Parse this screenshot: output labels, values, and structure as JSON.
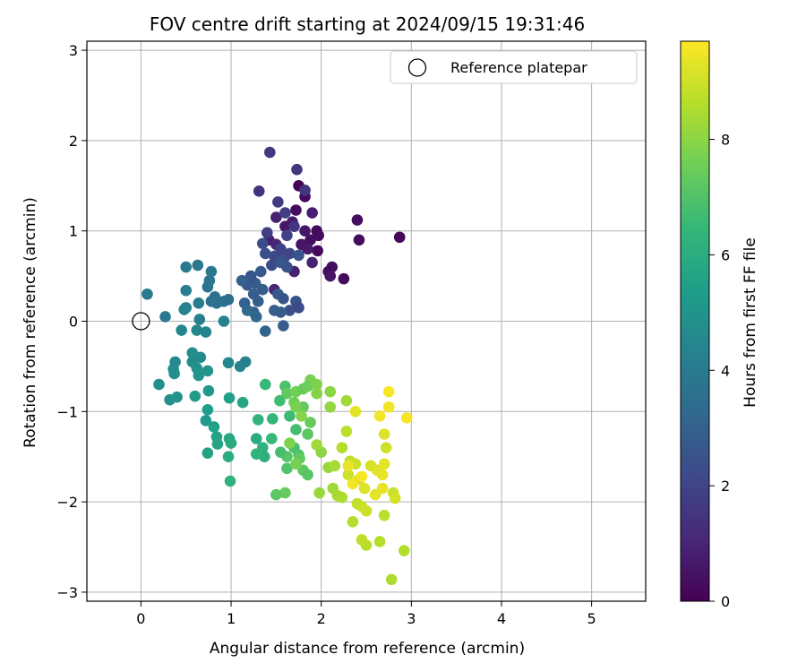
{
  "chart_data": {
    "type": "scatter",
    "title": "FOV centre drift starting at 2024/09/15 19:31:46",
    "xlabel": "Angular distance from reference (arcmin)",
    "ylabel": "Rotation from reference (arcmin)",
    "xlim": [
      -0.6,
      5.6
    ],
    "ylim": [
      -3.1,
      3.1
    ],
    "xticks": [
      0,
      1,
      2,
      3,
      4,
      5
    ],
    "yticks": [
      -3,
      -2,
      -1,
      0,
      1,
      2,
      3
    ],
    "grid": true,
    "legend": {
      "position": "top-right",
      "entries": [
        "Reference platepar"
      ]
    },
    "reference_point": {
      "x": 0,
      "y": 0
    },
    "colorbar": {
      "label": "Hours from first FF file",
      "min": 0,
      "max": 9.7,
      "ticks": [
        0,
        2,
        4,
        6,
        8
      ],
      "colormap": "viridis"
    },
    "points": [
      [
        1.75,
        1.5,
        0.1
      ],
      [
        1.82,
        1.38,
        0.2
      ],
      [
        1.72,
        1.23,
        0.3
      ],
      [
        1.95,
        1.0,
        0.2
      ],
      [
        1.97,
        0.95,
        0.3
      ],
      [
        2.4,
        1.12,
        0.4
      ],
      [
        2.42,
        0.9,
        0.3
      ],
      [
        2.87,
        0.93,
        0.2
      ],
      [
        1.88,
        0.9,
        0.4
      ],
      [
        1.78,
        0.85,
        0.5
      ],
      [
        1.96,
        0.78,
        0.2
      ],
      [
        2.12,
        0.6,
        0.4
      ],
      [
        2.08,
        0.55,
        0.3
      ],
      [
        2.25,
        0.47,
        0.3
      ],
      [
        2.1,
        0.5,
        0.5
      ],
      [
        1.6,
        1.05,
        0.6
      ],
      [
        1.68,
        1.1,
        0.7
      ],
      [
        1.9,
        1.2,
        0.8
      ],
      [
        1.82,
        1.0,
        0.6
      ],
      [
        1.5,
        1.15,
        0.9
      ],
      [
        1.42,
        0.9,
        0.8
      ],
      [
        1.9,
        0.65,
        0.9
      ],
      [
        1.85,
        0.8,
        0.7
      ],
      [
        1.7,
        0.55,
        0.9
      ],
      [
        1.48,
        0.35,
        1.0
      ],
      [
        1.5,
        0.85,
        1.0
      ],
      [
        1.6,
        0.72,
        1.1
      ],
      [
        1.43,
        1.87,
        1.6
      ],
      [
        1.73,
        1.68,
        1.6
      ],
      [
        1.82,
        1.45,
        1.5
      ],
      [
        1.31,
        1.44,
        1.4
      ],
      [
        1.52,
        1.32,
        1.7
      ],
      [
        1.6,
        1.2,
        1.8
      ],
      [
        1.7,
        1.05,
        1.5
      ],
      [
        1.62,
        0.95,
        1.9
      ],
      [
        1.55,
        0.8,
        2.0
      ],
      [
        1.65,
        0.75,
        2.1
      ],
      [
        1.48,
        0.72,
        2.2
      ],
      [
        1.58,
        0.68,
        2.3
      ],
      [
        1.45,
        0.62,
        2.2
      ],
      [
        1.38,
        0.75,
        2.4
      ],
      [
        1.35,
        0.86,
        2.3
      ],
      [
        1.4,
        0.98,
        1.8
      ],
      [
        1.75,
        0.73,
        2.5
      ],
      [
        1.55,
        0.65,
        2.6
      ],
      [
        1.62,
        0.6,
        2.5
      ],
      [
        1.33,
        0.55,
        2.7
      ],
      [
        1.27,
        0.42,
        2.8
      ],
      [
        1.22,
        0.5,
        2.6
      ],
      [
        1.18,
        0.4,
        2.7
      ],
      [
        1.35,
        0.35,
        2.8
      ],
      [
        1.3,
        0.22,
        2.9
      ],
      [
        1.25,
        0.3,
        2.9
      ],
      [
        1.15,
        0.2,
        3.0
      ],
      [
        1.12,
        0.45,
        3.0
      ],
      [
        1.52,
        0.3,
        2.7
      ],
      [
        1.58,
        0.25,
        2.6
      ],
      [
        1.72,
        0.22,
        2.5
      ],
      [
        1.65,
        0.12,
        2.4
      ],
      [
        1.55,
        0.1,
        2.8
      ],
      [
        1.48,
        0.12,
        2.9
      ],
      [
        1.58,
        -0.05,
        2.9
      ],
      [
        1.38,
        -0.11,
        3.1
      ],
      [
        1.75,
        0.15,
        2.2
      ],
      [
        1.25,
        0.1,
        3.0
      ],
      [
        1.28,
        0.05,
        3.2
      ],
      [
        1.18,
        0.12,
        3.3
      ],
      [
        0.97,
        0.24,
        3.4
      ],
      [
        0.92,
        0.22,
        3.5
      ],
      [
        0.82,
        0.27,
        3.6
      ],
      [
        0.84,
        0.2,
        3.7
      ],
      [
        0.78,
        0.22,
        3.6
      ],
      [
        0.76,
        0.45,
        3.8
      ],
      [
        0.74,
        0.38,
        3.7
      ],
      [
        0.78,
        0.55,
        3.9
      ],
      [
        0.63,
        0.62,
        3.9
      ],
      [
        0.5,
        0.6,
        4.0
      ],
      [
        0.5,
        0.34,
        4.1
      ],
      [
        0.64,
        0.2,
        4.1
      ],
      [
        0.5,
        0.15,
        4.2
      ],
      [
        0.48,
        0.13,
        4.3
      ],
      [
        0.65,
        0.02,
        4.2
      ],
      [
        0.72,
        -0.12,
        4.4
      ],
      [
        0.62,
        -0.1,
        4.5
      ],
      [
        0.45,
        -0.1,
        4.5
      ],
      [
        0.27,
        0.05,
        4.0
      ],
      [
        0.07,
        0.3,
        4.0
      ],
      [
        0.92,
        0.0,
        4.3
      ],
      [
        0.97,
        -0.46,
        4.5
      ],
      [
        1.1,
        -0.5,
        4.4
      ],
      [
        1.16,
        -0.45,
        4.3
      ],
      [
        0.66,
        -0.4,
        4.6
      ],
      [
        0.57,
        -0.45,
        4.7
      ],
      [
        0.38,
        -0.45,
        4.6
      ],
      [
        0.36,
        -0.53,
        4.7
      ],
      [
        0.37,
        -0.58,
        4.8
      ],
      [
        0.57,
        -0.35,
        4.8
      ],
      [
        0.62,
        -0.52,
        4.9
      ],
      [
        0.64,
        -0.6,
        5.0
      ],
      [
        0.74,
        -0.55,
        5.0
      ],
      [
        0.2,
        -0.7,
        4.8
      ],
      [
        0.32,
        -0.87,
        4.9
      ],
      [
        0.4,
        -0.84,
        5.0
      ],
      [
        0.75,
        -0.77,
        5.2
      ],
      [
        0.6,
        -0.83,
        5.3
      ],
      [
        0.74,
        -0.98,
        5.4
      ],
      [
        0.72,
        -1.1,
        5.2
      ],
      [
        0.81,
        -1.17,
        5.5
      ],
      [
        0.84,
        -1.28,
        5.6
      ],
      [
        0.85,
        -1.36,
        5.7
      ],
      [
        0.74,
        -1.46,
        5.6
      ],
      [
        0.98,
        -1.3,
        5.8
      ],
      [
        1.0,
        -1.35,
        5.9
      ],
      [
        0.97,
        -1.5,
        6.0
      ],
      [
        0.98,
        -0.85,
        5.5
      ],
      [
        1.13,
        -0.9,
        5.7
      ],
      [
        1.28,
        -1.3,
        6.0
      ],
      [
        1.35,
        -1.4,
        6.2
      ],
      [
        1.37,
        -1.5,
        6.1
      ],
      [
        1.28,
        -1.47,
        6.3
      ],
      [
        1.3,
        -1.09,
        6.3
      ],
      [
        1.45,
        -1.3,
        6.5
      ],
      [
        1.46,
        -1.08,
        6.4
      ],
      [
        0.99,
        -1.77,
        6.2
      ],
      [
        1.38,
        -0.7,
        6.5
      ],
      [
        1.54,
        -0.88,
        6.7
      ],
      [
        1.6,
        -0.72,
        6.9
      ],
      [
        1.65,
        -1.05,
        6.6
      ],
      [
        1.72,
        -1.2,
        6.8
      ],
      [
        1.7,
        -1.4,
        6.9
      ],
      [
        1.75,
        -1.48,
        7.0
      ],
      [
        1.62,
        -1.5,
        7.1
      ],
      [
        1.55,
        -1.45,
        6.8
      ],
      [
        1.62,
        -1.63,
        7.0
      ],
      [
        1.8,
        -1.65,
        7.2
      ],
      [
        1.85,
        -1.7,
        7.1
      ],
      [
        1.76,
        -1.52,
        7.3
      ],
      [
        1.85,
        -1.25,
        7.2
      ],
      [
        1.88,
        -1.12,
        7.4
      ],
      [
        1.8,
        -0.95,
        7.3
      ],
      [
        1.7,
        -0.9,
        7.5
      ],
      [
        1.62,
        -0.8,
        7.3
      ],
      [
        1.72,
        -0.78,
        7.6
      ],
      [
        1.8,
        -0.75,
        7.4
      ],
      [
        1.88,
        -0.65,
        7.7
      ],
      [
        1.85,
        -0.72,
        7.5
      ],
      [
        1.95,
        -0.7,
        7.8
      ],
      [
        1.95,
        -0.8,
        7.9
      ],
      [
        2.1,
        -0.78,
        8.0
      ],
      [
        2.1,
        -0.95,
        8.1
      ],
      [
        1.72,
        -0.95,
        7.7
      ],
      [
        1.78,
        -1.05,
        7.9
      ],
      [
        1.65,
        -1.35,
        7.8
      ],
      [
        1.72,
        -1.58,
        7.7
      ],
      [
        1.6,
        -1.9,
        7.4
      ],
      [
        1.5,
        -1.92,
        7.2
      ],
      [
        1.98,
        -1.9,
        8.2
      ],
      [
        2.13,
        -1.85,
        8.3
      ],
      [
        2.18,
        -1.93,
        8.4
      ],
      [
        2.23,
        -1.95,
        8.5
      ],
      [
        2.0,
        -1.45,
        8.0
      ],
      [
        2.08,
        -1.62,
        8.2
      ],
      [
        2.15,
        -1.6,
        8.4
      ],
      [
        1.95,
        -1.37,
        8.3
      ],
      [
        2.28,
        -0.88,
        8.3
      ],
      [
        2.23,
        -1.4,
        8.6
      ],
      [
        2.28,
        -1.22,
        8.7
      ],
      [
        2.32,
        -1.55,
        8.8
      ],
      [
        2.38,
        -1.58,
        8.9
      ],
      [
        2.3,
        -1.7,
        9.0
      ],
      [
        2.42,
        -1.75,
        9.1
      ],
      [
        2.48,
        -1.85,
        9.2
      ],
      [
        2.38,
        -1.0,
        9.3
      ],
      [
        2.55,
        -1.6,
        9.1
      ],
      [
        2.62,
        -1.65,
        9.2
      ],
      [
        2.68,
        -1.7,
        9.4
      ],
      [
        2.7,
        -1.58,
        9.3
      ],
      [
        2.72,
        -1.4,
        9.0
      ],
      [
        2.7,
        -1.25,
        9.2
      ],
      [
        2.65,
        -1.05,
        9.5
      ],
      [
        2.75,
        -0.95,
        9.5
      ],
      [
        2.75,
        -0.78,
        9.6
      ],
      [
        2.95,
        -1.07,
        9.6
      ],
      [
        2.4,
        -2.02,
        8.8
      ],
      [
        2.45,
        -2.05,
        8.9
      ],
      [
        2.5,
        -2.1,
        9.0
      ],
      [
        2.45,
        -2.42,
        8.8
      ],
      [
        2.5,
        -2.48,
        8.7
      ],
      [
        2.65,
        -2.44,
        8.6
      ],
      [
        2.35,
        -2.22,
        8.6
      ],
      [
        2.7,
        -2.15,
        8.7
      ],
      [
        2.8,
        -1.9,
        8.9
      ],
      [
        2.82,
        -1.96,
        9.1
      ],
      [
        2.78,
        -2.86,
        8.5
      ],
      [
        2.92,
        -2.54,
        8.6
      ],
      [
        2.6,
        -1.92,
        9.3
      ],
      [
        2.68,
        -1.85,
        9.4
      ],
      [
        2.35,
        -1.8,
        9.5
      ],
      [
        2.45,
        -1.72,
        9.6
      ],
      [
        2.3,
        -1.6,
        9.4
      ]
    ]
  }
}
